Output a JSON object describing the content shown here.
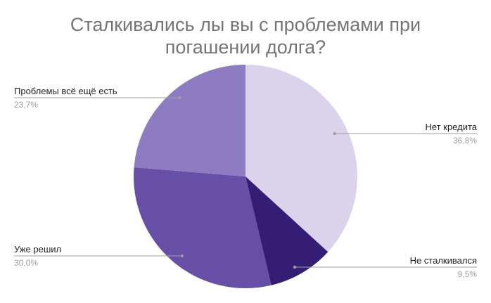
{
  "chart_data": {
    "type": "pie",
    "title_lines": [
      "Сталкивались лы вы с проблемами при",
      "погашении долга?"
    ],
    "start_angle_deg": 0,
    "direction": "clockwise",
    "slices": [
      {
        "label": "Нет кредита",
        "value": 36.8,
        "value_label": "36,8%",
        "color": "#dad3eb"
      },
      {
        "label": "Не сталкивался",
        "value": 9.5,
        "value_label": "9,5%",
        "color": "#351c75"
      },
      {
        "label": "Уже решил",
        "value": 30.0,
        "value_label": "30,0%",
        "color": "#674ea7"
      },
      {
        "label": "Проблемы всё ещё есть",
        "value": 23.7,
        "value_label": "23,7%",
        "color": "#8e7cc3"
      }
    ],
    "legend": "none"
  }
}
